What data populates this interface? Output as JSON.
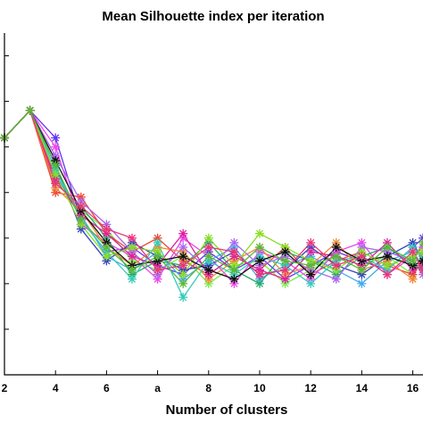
{
  "chart_data": {
    "type": "line",
    "title": "Mean Silhouette index per iteration",
    "xlabel": "Number of clusters",
    "ylabel": "",
    "x_ticks": [
      {
        "value": 2,
        "label": "2"
      },
      {
        "value": 4,
        "label": "4"
      },
      {
        "value": 6,
        "label": "6"
      },
      {
        "value": 8,
        "label": "a"
      },
      {
        "value": 10,
        "label": "8"
      },
      {
        "value": 12,
        "label": "10"
      },
      {
        "value": 14,
        "label": "12"
      },
      {
        "value": 16,
        "label": "14"
      },
      {
        "value": 18,
        "label": "16"
      }
    ],
    "xlim": [
      2,
      18.4
    ],
    "ylim": [
      0,
      0.75
    ],
    "y_ticks": [
      0.1,
      0.2,
      0.3,
      0.4,
      0.5,
      0.6,
      0.7
    ],
    "y_tick_labels_visible": false,
    "grid": false,
    "legend": "none",
    "marker": "asterisk",
    "x": [
      2,
      3,
      4,
      5,
      6,
      7,
      8,
      9,
      10,
      11,
      12,
      13,
      14,
      15,
      16,
      17,
      18,
      18.4
    ],
    "series": [
      {
        "color": "#77ee44",
        "values": [
          0.52,
          0.58,
          0.43,
          0.36,
          0.32,
          0.25,
          0.23,
          0.26,
          0.2,
          0.24,
          0.25,
          0.2,
          0.23,
          0.26,
          0.24,
          0.26,
          0.22,
          0.25
        ]
      },
      {
        "color": "#6633ee",
        "values": [
          0.52,
          0.58,
          0.52,
          0.34,
          0.27,
          0.28,
          0.24,
          0.22,
          0.27,
          0.23,
          0.26,
          0.21,
          0.24,
          0.27,
          0.25,
          0.23,
          0.28,
          0.3
        ]
      },
      {
        "color": "#ee4433",
        "values": [
          0.52,
          0.58,
          0.4,
          0.39,
          0.31,
          0.27,
          0.3,
          0.25,
          0.22,
          0.26,
          0.23,
          0.28,
          0.22,
          0.25,
          0.27,
          0.24,
          0.22,
          0.26
        ]
      },
      {
        "color": "#44aaee",
        "values": [
          0.52,
          0.58,
          0.44,
          0.35,
          0.26,
          0.23,
          0.27,
          0.21,
          0.25,
          0.28,
          0.21,
          0.24,
          0.26,
          0.23,
          0.2,
          0.25,
          0.27,
          0.24
        ]
      },
      {
        "color": "#ee44ee",
        "values": [
          0.52,
          0.58,
          0.5,
          0.33,
          0.29,
          0.26,
          0.21,
          0.3,
          0.26,
          0.2,
          0.27,
          0.25,
          0.21,
          0.27,
          0.29,
          0.22,
          0.26,
          0.28
        ]
      },
      {
        "color": "#22aa66",
        "values": [
          0.52,
          0.58,
          0.42,
          0.37,
          0.3,
          0.22,
          0.25,
          0.24,
          0.29,
          0.23,
          0.2,
          0.27,
          0.25,
          0.22,
          0.26,
          0.28,
          0.24,
          0.23
        ]
      },
      {
        "color": "#3344bb",
        "values": [
          0.52,
          0.58,
          0.46,
          0.32,
          0.25,
          0.29,
          0.26,
          0.23,
          0.24,
          0.27,
          0.22,
          0.23,
          0.28,
          0.24,
          0.22,
          0.26,
          0.29,
          0.25
        ]
      },
      {
        "color": "#ee8833",
        "values": [
          0.52,
          0.58,
          0.41,
          0.36,
          0.28,
          0.24,
          0.28,
          0.27,
          0.21,
          0.25,
          0.28,
          0.22,
          0.24,
          0.29,
          0.23,
          0.25,
          0.21,
          0.27
        ]
      },
      {
        "color": "#aa66ee",
        "values": [
          0.52,
          0.58,
          0.48,
          0.38,
          0.33,
          0.27,
          0.22,
          0.28,
          0.23,
          0.29,
          0.24,
          0.26,
          0.23,
          0.21,
          0.28,
          0.27,
          0.25,
          0.22
        ]
      },
      {
        "color": "#33ccbb",
        "values": [
          0.52,
          0.58,
          0.45,
          0.34,
          0.27,
          0.21,
          0.29,
          0.17,
          0.25,
          0.22,
          0.26,
          0.24,
          0.2,
          0.25,
          0.26,
          0.23,
          0.28,
          0.26
        ]
      },
      {
        "color": "#dd2299",
        "values": [
          0.52,
          0.58,
          0.43,
          0.35,
          0.31,
          0.26,
          0.24,
          0.31,
          0.22,
          0.26,
          0.23,
          0.21,
          0.27,
          0.26,
          0.24,
          0.29,
          0.23,
          0.24
        ]
      },
      {
        "color": "#88dd22",
        "values": [
          0.52,
          0.58,
          0.44,
          0.33,
          0.26,
          0.28,
          0.27,
          0.22,
          0.3,
          0.24,
          0.31,
          0.28,
          0.25,
          0.23,
          0.27,
          0.24,
          0.26,
          0.27
        ]
      },
      {
        "color": "#111111",
        "values": [
          0.52,
          0.58,
          0.47,
          0.36,
          0.29,
          0.24,
          0.25,
          0.26,
          0.23,
          0.21,
          0.25,
          0.27,
          0.22,
          0.28,
          0.25,
          0.26,
          0.24,
          0.25
        ]
      },
      {
        "color": "#ee3377",
        "values": [
          0.52,
          0.58,
          0.42,
          0.37,
          0.32,
          0.3,
          0.23,
          0.24,
          0.28,
          0.27,
          0.22,
          0.23,
          0.29,
          0.24,
          0.26,
          0.22,
          0.27,
          0.23
        ]
      },
      {
        "color": "#55bb33",
        "values": [
          0.52,
          0.58,
          0.46,
          0.34,
          0.28,
          0.23,
          0.26,
          0.2,
          0.26,
          0.23,
          0.28,
          0.25,
          0.24,
          0.26,
          0.23,
          0.28,
          0.25,
          0.29
        ]
      }
    ]
  }
}
